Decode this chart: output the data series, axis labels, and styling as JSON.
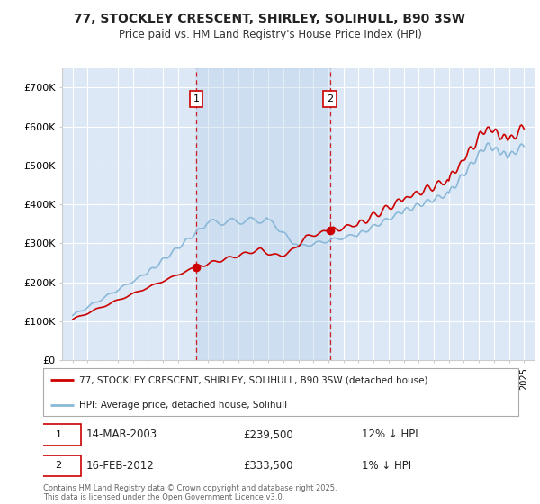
{
  "title_line1": "77, STOCKLEY CRESCENT, SHIRLEY, SOLIHULL, B90 3SW",
  "title_line2": "Price paid vs. HM Land Registry's House Price Index (HPI)",
  "hpi_label": "HPI: Average price, detached house, Solihull",
  "property_label": "77, STOCKLEY CRESCENT, SHIRLEY, SOLIHULL, B90 3SW (detached house)",
  "marker1_date": "14-MAR-2003",
  "marker1_price": 239500,
  "marker1_text": "12% ↓ HPI",
  "marker2_date": "16-FEB-2012",
  "marker2_price": 333500,
  "marker2_text": "1% ↓ HPI",
  "footer": "Contains HM Land Registry data © Crown copyright and database right 2025.\nThis data is licensed under the Open Government Licence v3.0.",
  "background_color": "#ffffff",
  "plot_bg_color": "#dce8f5",
  "grid_color": "#ffffff",
  "hpi_color": "#8ab8d8",
  "property_color": "#cc0000",
  "marker_vline_color": "#cc0000",
  "shade_color": "#c8dff0",
  "ylim_min": 0,
  "ylim_max": 750000,
  "yticks": [
    0,
    100000,
    200000,
    300000,
    400000,
    500000,
    600000,
    700000
  ],
  "ytick_labels": [
    "£0",
    "£100K",
    "£200K",
    "£300K",
    "£400K",
    "£500K",
    "£600K",
    "£700K"
  ],
  "marker1_x": 2003.21,
  "marker2_x": 2012.12,
  "xlim_min": 1994.3,
  "xlim_max": 2025.7
}
